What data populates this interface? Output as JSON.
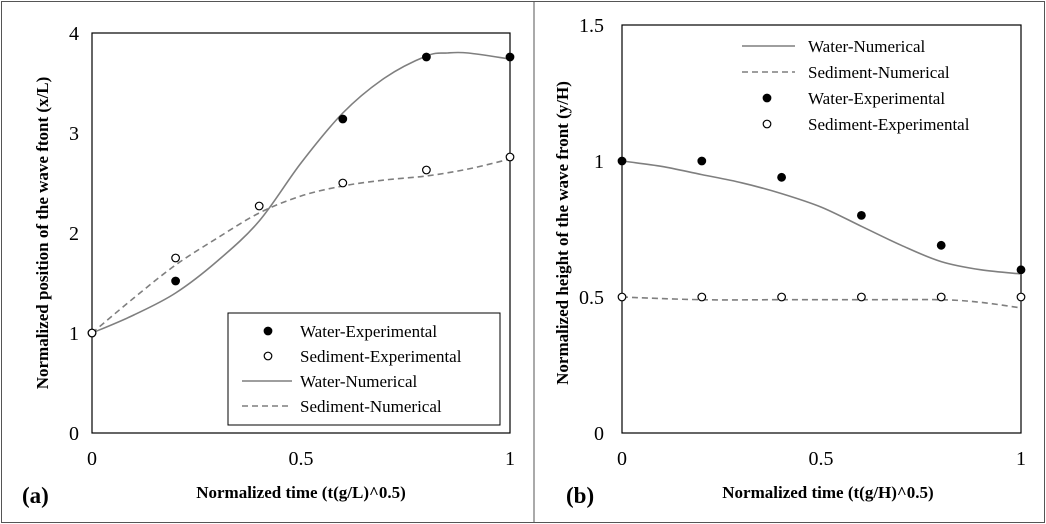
{
  "chart_data": [
    {
      "type": "scatter",
      "panel_label": "(a)",
      "xlabel": "Normalized time (t(g/L)^0.5)",
      "ylabel": "Normalized position of the wave ftont (x/L)",
      "xlim": [
        0,
        1
      ],
      "ylim": [
        0,
        4
      ],
      "xticks": [
        "0",
        "0.5",
        "1"
      ],
      "yticks": [
        "0",
        "1",
        "2",
        "3",
        "4"
      ],
      "legend_position": "bottom-right",
      "legend": [
        "Water-Experimental",
        "Sediment-Experimental",
        "Water-Numerical",
        "Sediment-Numerical"
      ],
      "series": [
        {
          "name": "Water-Experimental",
          "kind": "points-filled",
          "x": [
            0,
            0.2,
            0.6,
            0.8,
            1.0
          ],
          "y": [
            1.0,
            1.52,
            3.14,
            3.76,
            3.76
          ]
        },
        {
          "name": "Sediment-Experimental",
          "kind": "points-open",
          "x": [
            0,
            0.2,
            0.4,
            0.6,
            0.8,
            1.0
          ],
          "y": [
            1.0,
            1.75,
            2.27,
            2.5,
            2.63,
            2.76
          ]
        },
        {
          "name": "Water-Numerical",
          "kind": "line-solid",
          "x": [
            0,
            0.1,
            0.2,
            0.3,
            0.4,
            0.5,
            0.6,
            0.7,
            0.8,
            0.85,
            0.9,
            1.0
          ],
          "y": [
            1.0,
            1.18,
            1.4,
            1.72,
            2.12,
            2.7,
            3.2,
            3.55,
            3.77,
            3.8,
            3.8,
            3.74
          ]
        },
        {
          "name": "Sediment-Numerical",
          "kind": "line-dashed",
          "x": [
            0,
            0.1,
            0.2,
            0.3,
            0.4,
            0.5,
            0.6,
            0.7,
            0.8,
            0.9,
            1.0
          ],
          "y": [
            1.0,
            1.35,
            1.68,
            1.95,
            2.2,
            2.37,
            2.47,
            2.53,
            2.57,
            2.64,
            2.74
          ]
        }
      ]
    },
    {
      "type": "scatter",
      "panel_label": "(b)",
      "xlabel": "Normalized time (t(g/H)^0.5)",
      "ylabel": "Normalized height of the wave front (y/H)",
      "xlim": [
        0,
        1
      ],
      "ylim": [
        0,
        1.5
      ],
      "xticks": [
        "0",
        "0.5",
        "1"
      ],
      "yticks": [
        "0",
        "0.5",
        "1",
        "1.5"
      ],
      "legend_position": "top-right",
      "legend": [
        "Water-Numerical",
        "Sediment-Numerical",
        "Water-Experimental",
        "Sediment-Experimental"
      ],
      "series": [
        {
          "name": "Water-Numerical",
          "kind": "line-solid",
          "x": [
            0,
            0.1,
            0.2,
            0.3,
            0.4,
            0.5,
            0.6,
            0.7,
            0.8,
            0.9,
            1.0
          ],
          "y": [
            1.0,
            0.98,
            0.95,
            0.92,
            0.88,
            0.83,
            0.76,
            0.69,
            0.63,
            0.6,
            0.585
          ]
        },
        {
          "name": "Sediment-Numerical",
          "kind": "line-dashed",
          "x": [
            0,
            0.2,
            0.4,
            0.6,
            0.8,
            0.9,
            1.0
          ],
          "y": [
            0.5,
            0.49,
            0.49,
            0.49,
            0.49,
            0.48,
            0.46
          ]
        },
        {
          "name": "Water-Experimental",
          "kind": "points-filled",
          "x": [
            0,
            0.2,
            0.4,
            0.6,
            0.8,
            1.0
          ],
          "y": [
            1.0,
            1.0,
            0.94,
            0.8,
            0.69,
            0.6
          ]
        },
        {
          "name": "Sediment-Experimental",
          "kind": "points-open",
          "x": [
            0,
            0.2,
            0.4,
            0.6,
            0.8,
            1.0
          ],
          "y": [
            0.5,
            0.5,
            0.5,
            0.5,
            0.5,
            0.5
          ]
        }
      ]
    }
  ]
}
